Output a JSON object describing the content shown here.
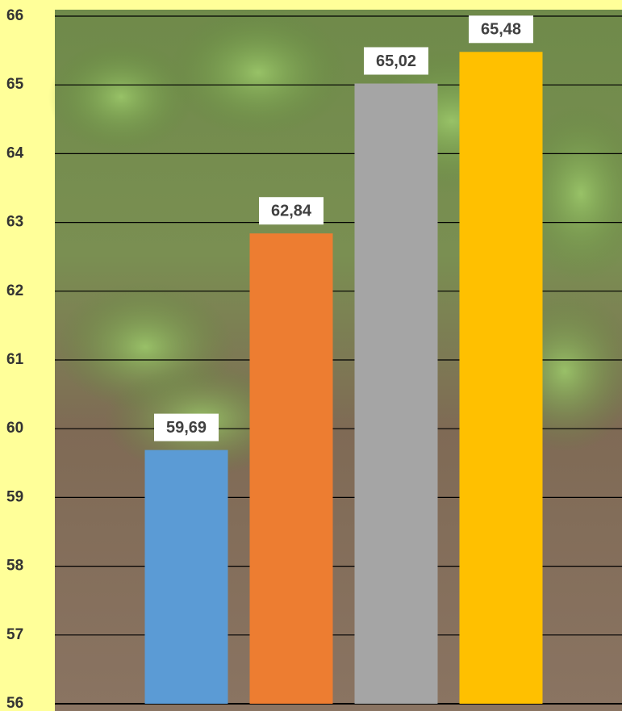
{
  "chart_data": {
    "type": "bar",
    "categories": [
      null,
      null,
      null,
      null
    ],
    "values": [
      59.69,
      62.84,
      65.02,
      65.48
    ],
    "value_labels": [
      "59,69",
      "62,84",
      "65,02",
      "65,48"
    ],
    "colors": [
      "#5b9bd5",
      "#ed7d31",
      "#a5a5a5",
      "#ffc000"
    ],
    "ylim": [
      56,
      66
    ],
    "yticks": [
      56,
      57,
      58,
      59,
      60,
      61,
      62,
      63,
      64,
      65,
      66
    ],
    "grid": true
  }
}
